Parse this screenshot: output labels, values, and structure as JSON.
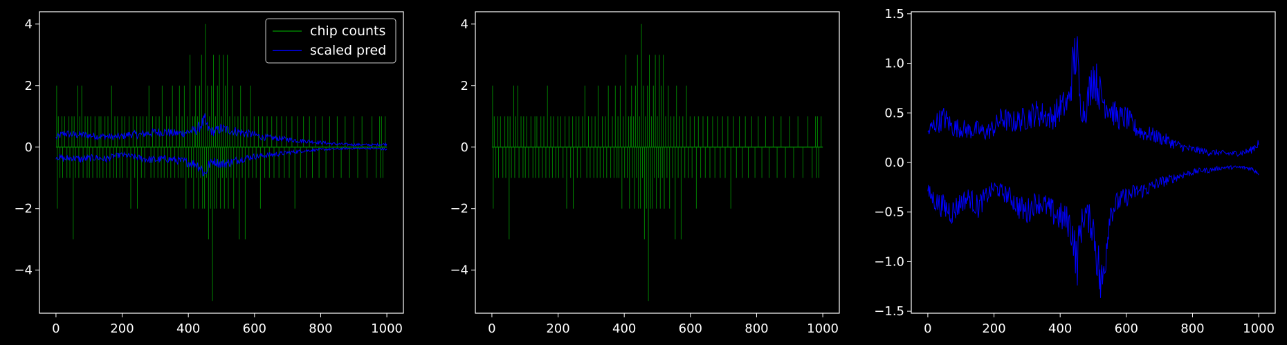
{
  "figure": {
    "background": "#000000",
    "foreground": "#ffffff"
  },
  "chart_data": [
    {
      "type": "line",
      "title": "",
      "xlabel": "",
      "ylabel": "",
      "xlim": [
        -50,
        1050
      ],
      "ylim": [
        -5.4,
        4.4
      ],
      "xticks": [
        0,
        200,
        400,
        600,
        800,
        1000
      ],
      "yticks": [
        -4,
        -2,
        0,
        2,
        4
      ],
      "xtick_labels": [
        "0",
        "200",
        "400",
        "600",
        "800",
        "1000"
      ],
      "ytick_labels": [
        "−4",
        "−2",
        "0",
        "2",
        "4"
      ],
      "legend": {
        "position": "upper right",
        "entries": [
          "chip counts",
          "scaled pred"
        ]
      },
      "series": [
        {
          "name": "chip counts",
          "color": "#008000",
          "style": "impulse",
          "x": [
            1,
            2,
            4,
            7,
            12,
            18,
            20,
            26,
            30,
            33,
            39,
            42,
            48,
            52,
            55,
            59,
            66,
            69,
            72,
            78,
            82,
            88,
            94,
            96,
            101,
            105,
            111,
            118,
            124,
            130,
            132,
            136,
            142,
            148,
            152,
            157,
            163,
            168,
            174,
            178,
            183,
            186,
            193,
            199,
            202,
            208,
            215,
            221,
            226,
            233,
            238,
            244,
            246,
            254,
            258,
            263,
            268,
            274,
            281,
            287,
            292,
            297,
            302,
            308,
            312,
            318,
            321,
            327,
            334,
            338,
            343,
            347,
            352,
            359,
            364,
            369,
            373,
            378,
            381,
            384,
            388,
            393,
            397,
            401,
            405,
            409,
            413,
            416,
            419,
            422,
            425,
            428,
            431,
            434,
            437,
            440,
            443,
            446,
            449,
            452,
            455,
            458,
            461,
            464,
            467,
            470,
            473,
            476,
            479,
            482,
            485,
            488,
            491,
            494,
            497,
            500,
            503,
            506,
            509,
            512,
            515,
            518,
            521,
            525,
            529,
            533,
            537,
            541,
            546,
            550,
            554,
            558,
            563,
            567,
            572,
            577,
            583,
            588,
            594,
            599,
            605,
            612,
            618,
            624,
            631,
            638,
            645,
            652,
            659,
            667,
            674,
            682,
            690,
            697,
            705,
            713,
            722,
            730,
            739,
            748,
            757,
            766,
            775,
            785,
            795,
            805,
            816,
            827,
            838,
            850,
            862,
            874,
            887,
            900,
            912,
            925,
            940,
            955,
            968,
            978,
            981,
            984,
            988,
            995
          ],
          "y": [
            0,
            2,
            -2,
            1,
            -1,
            1,
            -1,
            1,
            0,
            -1,
            1,
            -1,
            1,
            -3,
            1,
            -1,
            2,
            -1,
            1,
            2,
            -1,
            1,
            -1,
            1,
            -1,
            1,
            -1,
            1,
            -1,
            1,
            -1,
            1,
            -1,
            1,
            -1,
            1,
            -1,
            2,
            -1,
            1,
            -1,
            1,
            -1,
            1,
            -1,
            1,
            -1,
            1,
            -2,
            1,
            -1,
            1,
            -2,
            1,
            -1,
            1,
            -1,
            1,
            2,
            -1,
            1,
            -1,
            1,
            -1,
            1,
            -1,
            2,
            -1,
            1,
            -1,
            1,
            -1,
            2,
            -1,
            1,
            -1,
            2,
            -1,
            1,
            -1,
            2,
            -2,
            1,
            -1,
            3,
            -1,
            1,
            -2,
            1,
            2,
            -1,
            1,
            -2,
            2,
            -1,
            3,
            -2,
            1,
            -2,
            4,
            -1,
            2,
            -3,
            1,
            -2,
            2,
            -5,
            3,
            -2,
            1,
            -2,
            2,
            -1,
            3,
            -2,
            1,
            -1,
            3,
            -2,
            2,
            -1,
            3,
            -2,
            1,
            -1,
            2,
            -2,
            1,
            -1,
            1,
            -3,
            2,
            -1,
            1,
            -3,
            1,
            -1,
            2,
            -1,
            1,
            -1,
            1,
            -2,
            1,
            -1,
            1,
            -1,
            1,
            -1,
            1,
            -1,
            1,
            -1,
            1,
            -1,
            1,
            -2,
            1,
            -1,
            1,
            -1,
            1,
            -1,
            1,
            -1,
            1,
            -1,
            1,
            -1,
            1,
            -1,
            1,
            -1,
            1,
            -1,
            1,
            -1,
            1,
            -1,
            1,
            -1,
            1,
            -1,
            1
          ]
        },
        {
          "name": "scaled pred",
          "color": "#0000ff",
          "style": "band",
          "x": [
            0,
            25,
            50,
            75,
            100,
            125,
            150,
            175,
            200,
            225,
            250,
            275,
            300,
            325,
            350,
            375,
            400,
            425,
            440,
            450,
            460,
            475,
            500,
            525,
            550,
            575,
            600,
            625,
            650,
            675,
            700,
            725,
            750,
            775,
            800,
            825,
            850,
            875,
            900,
            925,
            950,
            975,
            1000
          ],
          "upper": [
            0.3,
            0.45,
            0.4,
            0.4,
            0.38,
            0.35,
            0.35,
            0.33,
            0.35,
            0.42,
            0.4,
            0.45,
            0.48,
            0.5,
            0.45,
            0.45,
            0.5,
            0.55,
            0.75,
            0.85,
            0.6,
            0.5,
            0.6,
            0.55,
            0.5,
            0.45,
            0.4,
            0.32,
            0.3,
            0.28,
            0.25,
            0.22,
            0.2,
            0.18,
            0.15,
            0.12,
            0.1,
            0.09,
            0.08,
            0.08,
            0.07,
            0.08,
            0.1
          ],
          "lower": [
            -0.3,
            -0.38,
            -0.35,
            -0.4,
            -0.36,
            -0.34,
            -0.4,
            -0.3,
            -0.25,
            -0.3,
            -0.35,
            -0.4,
            -0.42,
            -0.38,
            -0.4,
            -0.45,
            -0.5,
            -0.55,
            -0.7,
            -0.9,
            -0.6,
            -0.45,
            -0.55,
            -0.5,
            -0.42,
            -0.35,
            -0.3,
            -0.28,
            -0.25,
            -0.22,
            -0.18,
            -0.15,
            -0.12,
            -0.1,
            -0.08,
            -0.07,
            -0.06,
            -0.05,
            -0.04,
            -0.04,
            -0.04,
            -0.05,
            -0.08
          ]
        }
      ]
    },
    {
      "type": "line",
      "title": "",
      "xlabel": "",
      "ylabel": "",
      "xlim": [
        -50,
        1050
      ],
      "ylim": [
        -5.4,
        4.4
      ],
      "xticks": [
        0,
        200,
        400,
        600,
        800,
        1000
      ],
      "yticks": [
        -4,
        -2,
        0,
        2,
        4
      ],
      "xtick_labels": [
        "0",
        "200",
        "400",
        "600",
        "800",
        "1000"
      ],
      "ytick_labels": [
        "−4",
        "−2",
        "0",
        "2",
        "4"
      ],
      "series": [
        {
          "ref": "chip counts",
          "color": "#008000",
          "style": "impulse"
        }
      ]
    },
    {
      "type": "line",
      "title": "",
      "xlabel": "",
      "ylabel": "",
      "xlim": [
        -50,
        1050
      ],
      "ylim": [
        -1.52,
        1.52
      ],
      "xticks": [
        0,
        200,
        400,
        600,
        800,
        1000
      ],
      "yticks": [
        -1.5,
        -1.0,
        -0.5,
        0.0,
        0.5,
        1.0,
        1.5
      ],
      "xtick_labels": [
        "0",
        "200",
        "400",
        "600",
        "800",
        "1000"
      ],
      "ytick_labels": [
        "−1.5",
        "−1.0",
        "−0.5",
        "0.0",
        "0.5",
        "1.0",
        "1.5"
      ],
      "series": [
        {
          "ref": "scaled pred",
          "color": "#0000ff",
          "style": "band",
          "upper": [
            0.3,
            0.4,
            0.45,
            0.35,
            0.35,
            0.32,
            0.33,
            0.3,
            0.35,
            0.45,
            0.4,
            0.42,
            0.45,
            0.5,
            0.48,
            0.45,
            0.55,
            0.6,
            1.0,
            1.15,
            0.6,
            0.5,
            0.9,
            0.65,
            0.55,
            0.45,
            0.45,
            0.35,
            0.3,
            0.28,
            0.25,
            0.22,
            0.18,
            0.15,
            0.13,
            0.12,
            0.1,
            0.1,
            0.09,
            0.09,
            0.1,
            0.12,
            0.2
          ],
          "lower": [
            -0.3,
            -0.4,
            -0.45,
            -0.5,
            -0.4,
            -0.35,
            -0.45,
            -0.35,
            -0.25,
            -0.3,
            -0.35,
            -0.45,
            -0.5,
            -0.4,
            -0.42,
            -0.5,
            -0.55,
            -0.6,
            -0.75,
            -1.05,
            -0.7,
            -0.5,
            -0.65,
            -1.3,
            -0.5,
            -0.4,
            -0.35,
            -0.3,
            -0.28,
            -0.25,
            -0.2,
            -0.18,
            -0.15,
            -0.12,
            -0.1,
            -0.08,
            -0.08,
            -0.06,
            -0.05,
            -0.05,
            -0.05,
            -0.06,
            -0.1
          ]
        }
      ]
    }
  ]
}
